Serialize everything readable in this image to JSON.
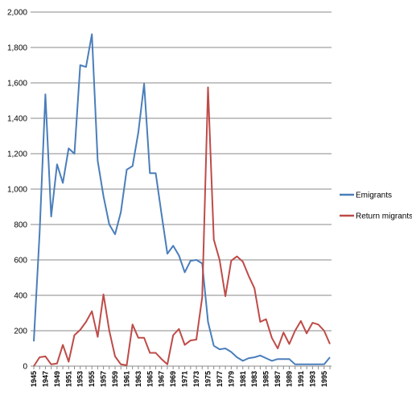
{
  "chart_data": {
    "type": "line",
    "title": "",
    "xlabel": "",
    "ylabel": "",
    "ylim": [
      0,
      2000
    ],
    "yticks": [
      "0",
      "200",
      "400",
      "600",
      "800",
      "1,000",
      "1,200",
      "1,400",
      "1,600",
      "1,800",
      "2,000"
    ],
    "grid": true,
    "legend": "right",
    "x": [
      1945,
      1946,
      1947,
      1948,
      1949,
      1950,
      1951,
      1952,
      1953,
      1954,
      1955,
      1956,
      1957,
      1958,
      1959,
      1960,
      1961,
      1962,
      1963,
      1964,
      1965,
      1966,
      1967,
      1968,
      1969,
      1970,
      1971,
      1972,
      1973,
      1974,
      1975,
      1976,
      1977,
      1978,
      1979,
      1980,
      1981,
      1982,
      1983,
      1984,
      1985,
      1986,
      1987,
      1988,
      1989,
      1990,
      1991,
      1992,
      1993,
      1994,
      1995,
      1996
    ],
    "xtick_labels": [
      "1945",
      "1947",
      "1949",
      "1951",
      "1953",
      "1955",
      "1957",
      "1959",
      "1961",
      "1963",
      "1965",
      "1967",
      "1969",
      "1971",
      "1973",
      "1975",
      "1977",
      "1979",
      "1981",
      "1983",
      "1985",
      "1987",
      "1989",
      "1991",
      "1993",
      "1995"
    ],
    "series": [
      {
        "name": "Emigrants",
        "color": "#4a7ebb",
        "values": [
          140,
          750,
          1535,
          845,
          1140,
          1035,
          1230,
          1200,
          1700,
          1690,
          1875,
          1160,
          960,
          800,
          745,
          870,
          1110,
          1130,
          1320,
          1595,
          1090,
          1090,
          860,
          635,
          680,
          625,
          530,
          595,
          600,
          580,
          250,
          115,
          95,
          100,
          80,
          50,
          30,
          45,
          50,
          60,
          45,
          30,
          40,
          40,
          40,
          10,
          10,
          10,
          10,
          10,
          10,
          50
        ]
      },
      {
        "name": "Return migrants",
        "color": "#be4b48",
        "values": [
          0,
          50,
          55,
          10,
          15,
          120,
          25,
          175,
          205,
          250,
          310,
          165,
          405,
          200,
          55,
          10,
          5,
          235,
          160,
          160,
          75,
          75,
          40,
          10,
          175,
          210,
          120,
          145,
          150,
          390,
          1575,
          715,
          600,
          395,
          595,
          620,
          590,
          510,
          440,
          250,
          265,
          160,
          100,
          190,
          125,
          200,
          255,
          185,
          245,
          235,
          200,
          125
        ]
      }
    ]
  }
}
